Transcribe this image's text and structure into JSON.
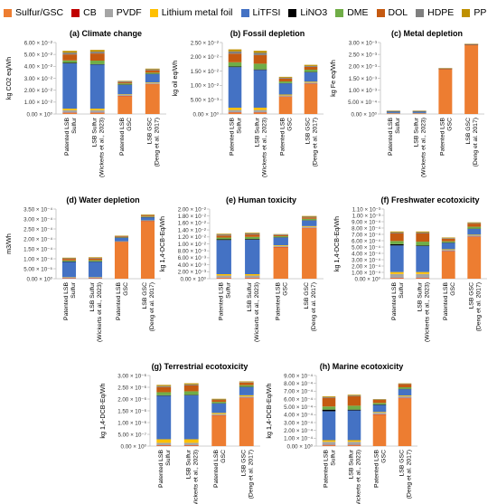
{
  "series_meta": [
    {
      "name": "Sulfur/GSC",
      "color": "#ed7d31"
    },
    {
      "name": "CB",
      "color": "#c00000"
    },
    {
      "name": "PVDF",
      "color": "#a5a5a5"
    },
    {
      "name": "Lithium metal foil",
      "color": "#ffc000"
    },
    {
      "name": "LiTFSI",
      "color": "#4472c4"
    },
    {
      "name": "LiNO3",
      "color": "#000000"
    },
    {
      "name": "DME",
      "color": "#70ad47"
    },
    {
      "name": "DOL",
      "color": "#c55a11"
    },
    {
      "name": "HDPE",
      "color": "#7f7f7f"
    },
    {
      "name": "PP",
      "color": "#bf9000"
    }
  ],
  "chart_data": [
    {
      "type": "bar",
      "stacked": true,
      "title": "(a) Climate change",
      "ylabel": "kg CO2 eq/Wh",
      "categories": [
        "Patented LSB Sulfur",
        "LSB Sulfur (Wickerts et al., 2023)",
        "Patented LSB GSC",
        "LSB GSC (Deng et al. 2017)"
      ],
      "ylim": [
        0,
        0.06
      ],
      "y_tick_labels": [
        "0.00 × 10⁰",
        "1.00 × 10⁻²",
        "2.00 × 10⁻²",
        "3.00 × 10⁻²",
        "4.00 × 10⁻²",
        "5.00 × 10⁻²",
        "6.00 × 10⁻²"
      ],
      "series": [
        {
          "name": "Sulfur/GSC",
          "values": [
            0.001,
            0.001,
            0.015,
            0.025
          ]
        },
        {
          "name": "CB",
          "values": [
            0.0002,
            0.0002,
            0.0002,
            0.0002
          ]
        },
        {
          "name": "PVDF",
          "values": [
            0.002,
            0.002,
            0.0008,
            0.0008
          ]
        },
        {
          "name": "Lithium metal foil",
          "values": [
            0.0013,
            0.0013,
            0.0005,
            0.0005
          ]
        },
        {
          "name": "LiTFSI",
          "values": [
            0.038,
            0.037,
            0.008,
            0.007
          ]
        },
        {
          "name": "LiNO3",
          "values": [
            0.0005,
            0.0003,
            0.0002,
            0.0002
          ]
        },
        {
          "name": "DME",
          "values": [
            0.002,
            0.003,
            0.001,
            0.001
          ]
        },
        {
          "name": "DOL",
          "values": [
            0.005,
            0.006,
            0.001,
            0.002
          ]
        },
        {
          "name": "HDPE",
          "values": [
            0.0015,
            0.0015,
            0.0008,
            0.0008
          ]
        },
        {
          "name": "PP",
          "values": [
            0.0015,
            0.0015,
            0.0004,
            0.0006
          ]
        }
      ]
    },
    {
      "type": "bar",
      "stacked": true,
      "title": "(b) Fossil depletion",
      "ylabel": "kg oil eq/Wh",
      "categories": [
        "Patented LSB Sulfur",
        "LSB Sulfur (Wickerts et al., 2023)",
        "Patented LSB GSC",
        "LSB GSC (Deng et al. 2017)"
      ],
      "ylim": [
        0,
        0.025
      ],
      "y_tick_labels": [
        "0.00 × 10⁰",
        "5.00 × 10⁻³",
        "1.00 × 10⁻²",
        "1.50 × 10⁻²",
        "2.00 × 10⁻²",
        "2.50 × 10⁻²"
      ],
      "series": [
        {
          "name": "Sulfur/GSC",
          "values": [
            0.0005,
            0.0005,
            0.006,
            0.0105
          ]
        },
        {
          "name": "CB",
          "values": [
            0.0001,
            0.0001,
            0.0001,
            0.0001
          ]
        },
        {
          "name": "PVDF",
          "values": [
            0.0008,
            0.0008,
            0.0004,
            0.0004
          ]
        },
        {
          "name": "Lithium metal foil",
          "values": [
            0.0008,
            0.0008,
            0.0003,
            0.0003
          ]
        },
        {
          "name": "LiTFSI",
          "values": [
            0.0142,
            0.0132,
            0.0039,
            0.0033
          ]
        },
        {
          "name": "LiNO3",
          "values": [
            0.0002,
            0.0002,
            0.0001,
            0.0001
          ]
        },
        {
          "name": "DME",
          "values": [
            0.0015,
            0.002,
            0.0006,
            0.0008
          ]
        },
        {
          "name": "DOL",
          "values": [
            0.003,
            0.003,
            0.001,
            0.001
          ]
        },
        {
          "name": "HDPE",
          "values": [
            0.0008,
            0.0008,
            0.0003,
            0.0003
          ]
        },
        {
          "name": "PP",
          "values": [
            0.0007,
            0.0007,
            0.0003,
            0.0004
          ]
        }
      ]
    },
    {
      "type": "bar",
      "stacked": true,
      "title": "(c) Metal depletion",
      "ylabel": "kg Fe eq/Wh",
      "categories": [
        "Patented LSB Sulfur",
        "LSB Sulfur (Wickerts et al., 2023)",
        "Patented LSB GSC",
        "LSB GSC (Deng et al. 2017)"
      ],
      "ylim": [
        0,
        0.003
      ],
      "y_tick_labels": [
        "0.00 × 10⁰",
        "5.00 × 10⁻⁴",
        "1.00 × 10⁻³",
        "1.50 × 10⁻³",
        "2.00 × 10⁻³",
        "2.50 × 10⁻³",
        "3.00 × 10⁻³"
      ],
      "series": [
        {
          "name": "Sulfur/GSC",
          "values": [
            1e-05,
            1e-05,
            0.00188,
            0.0029
          ]
        },
        {
          "name": "CB",
          "values": [
            2e-06,
            2e-06,
            2e-06,
            2e-06
          ]
        },
        {
          "name": "PVDF",
          "values": [
            2e-05,
            2e-05,
            8e-06,
            8e-06
          ]
        },
        {
          "name": "Lithium metal foil",
          "values": [
            1e-05,
            1e-05,
            5e-06,
            5e-06
          ]
        },
        {
          "name": "LiTFSI",
          "values": [
            6e-05,
            6e-05,
            1e-05,
            1e-05
          ]
        },
        {
          "name": "LiNO3",
          "values": [
            5e-06,
            5e-06,
            2e-06,
            2e-06
          ]
        },
        {
          "name": "DME",
          "values": [
            1e-05,
            1e-05,
            5e-06,
            5e-06
          ]
        },
        {
          "name": "DOL",
          "values": [
            5e-06,
            5e-06,
            3e-06,
            3e-06
          ]
        },
        {
          "name": "HDPE",
          "values": [
            1e-05,
            1e-05,
            5e-06,
            5e-06
          ]
        },
        {
          "name": "PP",
          "values": [
            1e-05,
            1e-05,
            5e-06,
            5e-06
          ]
        }
      ]
    },
    {
      "type": "bar",
      "stacked": true,
      "title": "(d) Water depletion",
      "ylabel": "m3/Wh",
      "categories": [
        "Patented LSB Sulfur",
        "LSB Sulfur (Wickerts et al., 2023)",
        "Patented LSB GSC",
        "LSB GSC (Deng et al. 2017)"
      ],
      "ylim": [
        0,
        0.00035
      ],
      "y_tick_labels": [
        "0.00 × 10⁰",
        "5.00 × 10⁻⁵",
        "1.00 × 10⁻⁴",
        "1.50 × 10⁻⁴",
        "2.00 × 10⁻⁴",
        "2.50 × 10⁻⁴",
        "3.00 × 10⁻⁴",
        "3.50 × 10⁻⁴"
      ],
      "series": [
        {
          "name": "Sulfur/GSC",
          "values": [
            2e-06,
            2e-06,
            0.000185,
            0.00029
          ]
        },
        {
          "name": "CB",
          "values": [
            5e-07,
            5e-07,
            5e-07,
            5e-07
          ]
        },
        {
          "name": "PVDF",
          "values": [
            3e-06,
            3e-06,
            1e-06,
            1e-06
          ]
        },
        {
          "name": "Lithium metal foil",
          "values": [
            2e-06,
            2e-06,
            1e-06,
            1e-06
          ]
        },
        {
          "name": "LiTFSI",
          "values": [
            7.7e-05,
            7.8e-05,
            1.8e-05,
            1.6e-05
          ]
        },
        {
          "name": "LiNO3",
          "values": [
            2e-06,
            1e-06,
            1e-06,
            1e-06
          ]
        },
        {
          "name": "DME",
          "values": [
            5e-06,
            6e-06,
            2e-06,
            3e-06
          ]
        },
        {
          "name": "DOL",
          "values": [
            8e-06,
            9e-06,
            4e-06,
            5e-06
          ]
        },
        {
          "name": "HDPE",
          "values": [
            3e-06,
            3e-06,
            2e-06,
            2e-06
          ]
        },
        {
          "name": "PP",
          "values": [
            3e-06,
            3e-06,
            2e-06,
            3e-06
          ]
        }
      ]
    },
    {
      "type": "bar",
      "stacked": true,
      "title": "(e) Human toxicity",
      "ylabel": "kg 1,4-DCB-Eq/Wh",
      "categories": [
        "Patented LSB Sulfur",
        "LSB Sulfur (Wickerts et al., 2023)",
        "Patented LSB GSC",
        "LSB GSC (Deng et al. 2017)"
      ],
      "ylim": [
        0,
        0.02
      ],
      "y_tick_labels": [
        "0.00 × 10⁰",
        "2.00 × 10⁻³",
        "4.00 × 10⁻³",
        "6.00 × 10⁻³",
        "8.00 × 10⁻³",
        "1.00 × 10⁻²",
        "1.20 × 10⁻²",
        "1.40 × 10⁻²",
        "1.60 × 10⁻²",
        "1.80 × 10⁻²",
        "2.00 × 10⁻²"
      ],
      "series": [
        {
          "name": "Sulfur/GSC",
          "values": [
            0.0002,
            0.0002,
            0.009,
            0.0145
          ]
        },
        {
          "name": "CB",
          "values": [
            0.0001,
            0.0001,
            0.0001,
            0.0001
          ]
        },
        {
          "name": "PVDF",
          "values": [
            0.0006,
            0.0006,
            0.0003,
            0.0003
          ]
        },
        {
          "name": "Lithium metal foil",
          "values": [
            0.0004,
            0.0004,
            0.0002,
            0.0002
          ]
        },
        {
          "name": "LiTFSI",
          "values": [
            0.0098,
            0.0099,
            0.0022,
            0.0016
          ]
        },
        {
          "name": "LiNO3",
          "values": [
            0.0002,
            0.0002,
            0.0001,
            0.0001
          ]
        },
        {
          "name": "DME",
          "values": [
            0.0005,
            0.0006,
            0.0003,
            0.0004
          ]
        },
        {
          "name": "DOL",
          "values": [
            0.0006,
            0.0007,
            0.0003,
            0.0004
          ]
        },
        {
          "name": "HDPE",
          "values": [
            0.0003,
            0.0003,
            0.0002,
            0.0002
          ]
        },
        {
          "name": "PP",
          "values": [
            0.0002,
            0.0002,
            0.0001,
            0.0002
          ]
        }
      ]
    },
    {
      "type": "bar",
      "stacked": true,
      "title": "(f) Freshwater ecotoxicity",
      "ylabel": "kg 1,4-DCB-Eq/Wh",
      "categories": [
        "Patented LSB Sulfur",
        "LSB Sulfur (Wickerts et al., 2023)",
        "Patented LSB GSC",
        "LSB GSC (Deng et al. 2017)"
      ],
      "ylim": [
        0,
        0.0011
      ],
      "y_tick_labels": [
        "0.00 × 10⁰",
        "1.00 × 10⁻⁴",
        "2.00 × 10⁻⁴",
        "3.00 × 10⁻⁴",
        "4.00 × 10⁻⁴",
        "5.00 × 10⁻⁴",
        "6.00 × 10⁻⁴",
        "7.00 × 10⁻⁴",
        "8.00 × 10⁻⁴",
        "9.00 × 10⁻⁴",
        "1.00 × 10⁻³",
        "1.10 × 10⁻³"
      ],
      "series": [
        {
          "name": "Sulfur/GSC",
          "values": [
            1e-05,
            1e-05,
            0.00043,
            0.00066
          ]
        },
        {
          "name": "CB",
          "values": [
            5e-06,
            5e-06,
            5e-06,
            5e-06
          ]
        },
        {
          "name": "PVDF",
          "values": [
            6e-05,
            6e-05,
            2e-05,
            2e-05
          ]
        },
        {
          "name": "Lithium metal foil",
          "values": [
            3e-05,
            3e-05,
            1e-05,
            1e-05
          ]
        },
        {
          "name": "LiTFSI",
          "values": [
            0.00042,
            0.00041,
            0.0001,
            9e-05
          ]
        },
        {
          "name": "LiNO3",
          "values": [
            2e-05,
            1e-05,
            5e-06,
            5e-06
          ]
        },
        {
          "name": "DME",
          "values": [
            5e-05,
            6e-05,
            2e-05,
            3e-05
          ]
        },
        {
          "name": "DOL",
          "values": [
            0.00012,
            0.00013,
            4e-05,
            5e-05
          ]
        },
        {
          "name": "HDPE",
          "values": [
            1.5e-05,
            1.5e-05,
            1e-05,
            1e-05
          ]
        },
        {
          "name": "PP",
          "values": [
            1.5e-05,
            1.5e-05,
            1e-05,
            1e-05
          ]
        }
      ]
    },
    {
      "type": "bar",
      "stacked": true,
      "title": "(g) Terrestrial ecotoxicity",
      "ylabel": "kg 1,4-DCB-Eq/Wh",
      "categories": [
        "Patented LSB Sulfur",
        "LSB Sulfur (Wickerts et al., 2023)",
        "Patented LSB GSC",
        "LSB GSC (Deng et al. 2017)"
      ],
      "ylim": [
        0,
        3e-06
      ],
      "y_tick_labels": [
        "0.00 × 10⁰",
        "5.00 × 10⁻⁷",
        "1.00 × 10⁻⁶",
        "1.50 × 10⁻⁶",
        "2.00 × 10⁻⁶",
        "2.50 × 10⁻⁶",
        "3.00 × 10⁻⁶"
      ],
      "series": [
        {
          "name": "Sulfur/GSC",
          "values": [
            3e-08,
            3e-08,
            1.3e-06,
            2.05e-06
          ]
        },
        {
          "name": "CB",
          "values": [
            1e-08,
            1e-08,
            1e-08,
            1e-08
          ]
        },
        {
          "name": "PVDF",
          "values": [
            1e-07,
            1e-07,
            5e-08,
            5e-08
          ]
        },
        {
          "name": "Lithium metal foil",
          "values": [
            1.5e-07,
            1.5e-07,
            5e-08,
            5e-08
          ]
        },
        {
          "name": "LiTFSI",
          "values": [
            1.85e-06,
            1.87e-06,
            4e-07,
            3.5e-07
          ]
        },
        {
          "name": "LiNO3",
          "values": [
            2e-08,
            2e-08,
            1e-08,
            1e-08
          ]
        },
        {
          "name": "DME",
          "values": [
            1.3e-07,
            1.5e-07,
            6e-08,
            7e-08
          ]
        },
        {
          "name": "DOL",
          "values": [
            2.2e-07,
            2.5e-07,
            8e-08,
            1.1e-07
          ]
        },
        {
          "name": "HDPE",
          "values": [
            4e-08,
            4e-08,
            2e-08,
            2e-08
          ]
        },
        {
          "name": "PP",
          "values": [
            5e-08,
            5e-08,
            3e-08,
            3e-08
          ]
        }
      ]
    },
    {
      "type": "bar",
      "stacked": true,
      "title": "(h) Marine ecotoxicity",
      "ylabel": "kg 1,4-DCB-Eq/Wh",
      "categories": [
        "Patented LSB Sulfur",
        "LSB Sulfur (Wickerts et al., 2023)",
        "Patented LSB GSC",
        "LSB GSC (Deng et al. 2017)"
      ],
      "ylim": [
        0,
        0.0009
      ],
      "y_tick_labels": [
        "0.00 × 10⁰",
        "1.00 × 10⁻⁴",
        "2.00 × 10⁻⁴",
        "3.00 × 10⁻⁴",
        "4.00 × 10⁻⁴",
        "5.00 × 10⁻⁴",
        "6.00 × 10⁻⁴",
        "7.00 × 10⁻⁴",
        "8.00 × 10⁻⁴",
        "9.00 × 10⁻⁴"
      ],
      "series": [
        {
          "name": "Sulfur/GSC",
          "values": [
            1e-05,
            1e-05,
            0.0004,
            0.00061
          ]
        },
        {
          "name": "CB",
          "values": [
            5e-06,
            5e-06,
            5e-06,
            5e-06
          ]
        },
        {
          "name": "PVDF",
          "values": [
            4e-05,
            4e-05,
            2e-05,
            2e-05
          ]
        },
        {
          "name": "Lithium metal foil",
          "values": [
            2e-05,
            2e-05,
            1e-05,
            1e-05
          ]
        },
        {
          "name": "LiTFSI",
          "values": [
            0.00037,
            0.00038,
            9e-05,
            8e-05
          ]
        },
        {
          "name": "LiNO3",
          "values": [
            2e-05,
            1e-05,
            5e-06,
            5e-06
          ]
        },
        {
          "name": "DME",
          "values": [
            4e-05,
            5e-05,
            2e-05,
            2e-05
          ]
        },
        {
          "name": "DOL",
          "values": [
            0.00011,
            0.00012,
            4e-05,
            4e-05
          ]
        },
        {
          "name": "HDPE",
          "values": [
            1e-05,
            1e-05,
            5e-06,
            5e-06
          ]
        },
        {
          "name": "PP",
          "values": [
            1e-05,
            1e-05,
            5e-06,
            5e-06
          ]
        }
      ]
    }
  ]
}
